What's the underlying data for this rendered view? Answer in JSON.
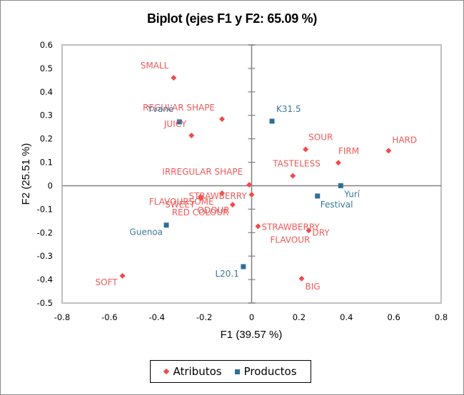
{
  "chart_data": {
    "type": "scatter",
    "title": "Biplot (ejes F1 y F2: 65.09 %)",
    "xlabel": "F1 (39.57 %)",
    "ylabel": "F2 (25.51 %)",
    "xlim": [
      -0.8,
      0.8
    ],
    "ylim": [
      -0.5,
      0.6
    ],
    "xticks": [
      "-0.8",
      "-0.6",
      "-0.4",
      "-0.2",
      "0",
      "0.2",
      "0.4",
      "0.6",
      "0.8"
    ],
    "xtick_values": [
      -0.8,
      -0.6,
      -0.4,
      -0.2,
      0,
      0.2,
      0.4,
      0.6,
      0.8
    ],
    "yticks": [
      "0.6",
      "0.5",
      "0.4",
      "0.3",
      "0.2",
      "0.1",
      "0",
      "-0.1",
      "-0.2",
      "-0.3",
      "-0.4",
      "-0.5"
    ],
    "ytick_values": [
      0.6,
      0.5,
      0.4,
      0.3,
      0.2,
      0.1,
      0,
      -0.1,
      -0.2,
      -0.3,
      -0.4,
      -0.5
    ],
    "grid": false,
    "legend_position": "bottom",
    "series": [
      {
        "name": "Atributos",
        "marker": "diamond",
        "color": "#f04b4b",
        "label_color": "#f05a5a",
        "points": [
          {
            "label": "SMALL",
            "x": -0.329,
            "y": 0.46
          },
          {
            "label": "REGULAR SHAPE",
            "x": -0.125,
            "y": 0.284
          },
          {
            "label": "JUICY",
            "x": -0.254,
            "y": 0.214
          },
          {
            "label": "SOUR",
            "x": 0.228,
            "y": 0.155
          },
          {
            "label": "HARD",
            "x": 0.578,
            "y": 0.149
          },
          {
            "label": "FIRM",
            "x": 0.366,
            "y": 0.098
          },
          {
            "label": "TASTELESS",
            "x": 0.174,
            "y": 0.042
          },
          {
            "label": "IRREGULAR SHAPE",
            "x": -0.01,
            "y": 0.004
          },
          {
            "label": "STRAWBERRY",
            "x": -0.125,
            "y": -0.032
          },
          {
            "label": "FLAVOURSOME",
            "x": -0.215,
            "y": -0.047
          },
          {
            "label": "SWEET",
            "x": -0.215,
            "y": -0.053
          },
          {
            "label": "ODOUR",
            "x": -0.08,
            "y": -0.081
          },
          {
            "label": "RED COLOUR",
            "x": 0.0,
            "y": -0.038
          },
          {
            "label": "STRAWBERRY FLAVOUR",
            "x": 0.027,
            "y": -0.173
          },
          {
            "label": "DRY",
            "x": 0.241,
            "y": -0.191
          },
          {
            "label": "BIG",
            "x": 0.211,
            "y": -0.396
          },
          {
            "label": "SOFT",
            "x": -0.545,
            "y": -0.384
          }
        ]
      },
      {
        "name": "Productos",
        "marker": "square",
        "color": "#2e6f96",
        "label_color": "#3a7898",
        "points": [
          {
            "label": "Yvané",
            "x": -0.305,
            "y": 0.272
          },
          {
            "label": "K31.5",
            "x": 0.086,
            "y": 0.275
          },
          {
            "label": "Yurí",
            "x": 0.376,
            "y": 0.0
          },
          {
            "label": "Festival",
            "x": 0.278,
            "y": -0.044
          },
          {
            "label": "Guenoa",
            "x": -0.36,
            "y": -0.168
          },
          {
            "label": "L20.1",
            "x": -0.035,
            "y": -0.345
          }
        ]
      }
    ]
  },
  "legend": {
    "items": [
      {
        "label": "Atributos"
      },
      {
        "label": "Productos"
      }
    ]
  }
}
